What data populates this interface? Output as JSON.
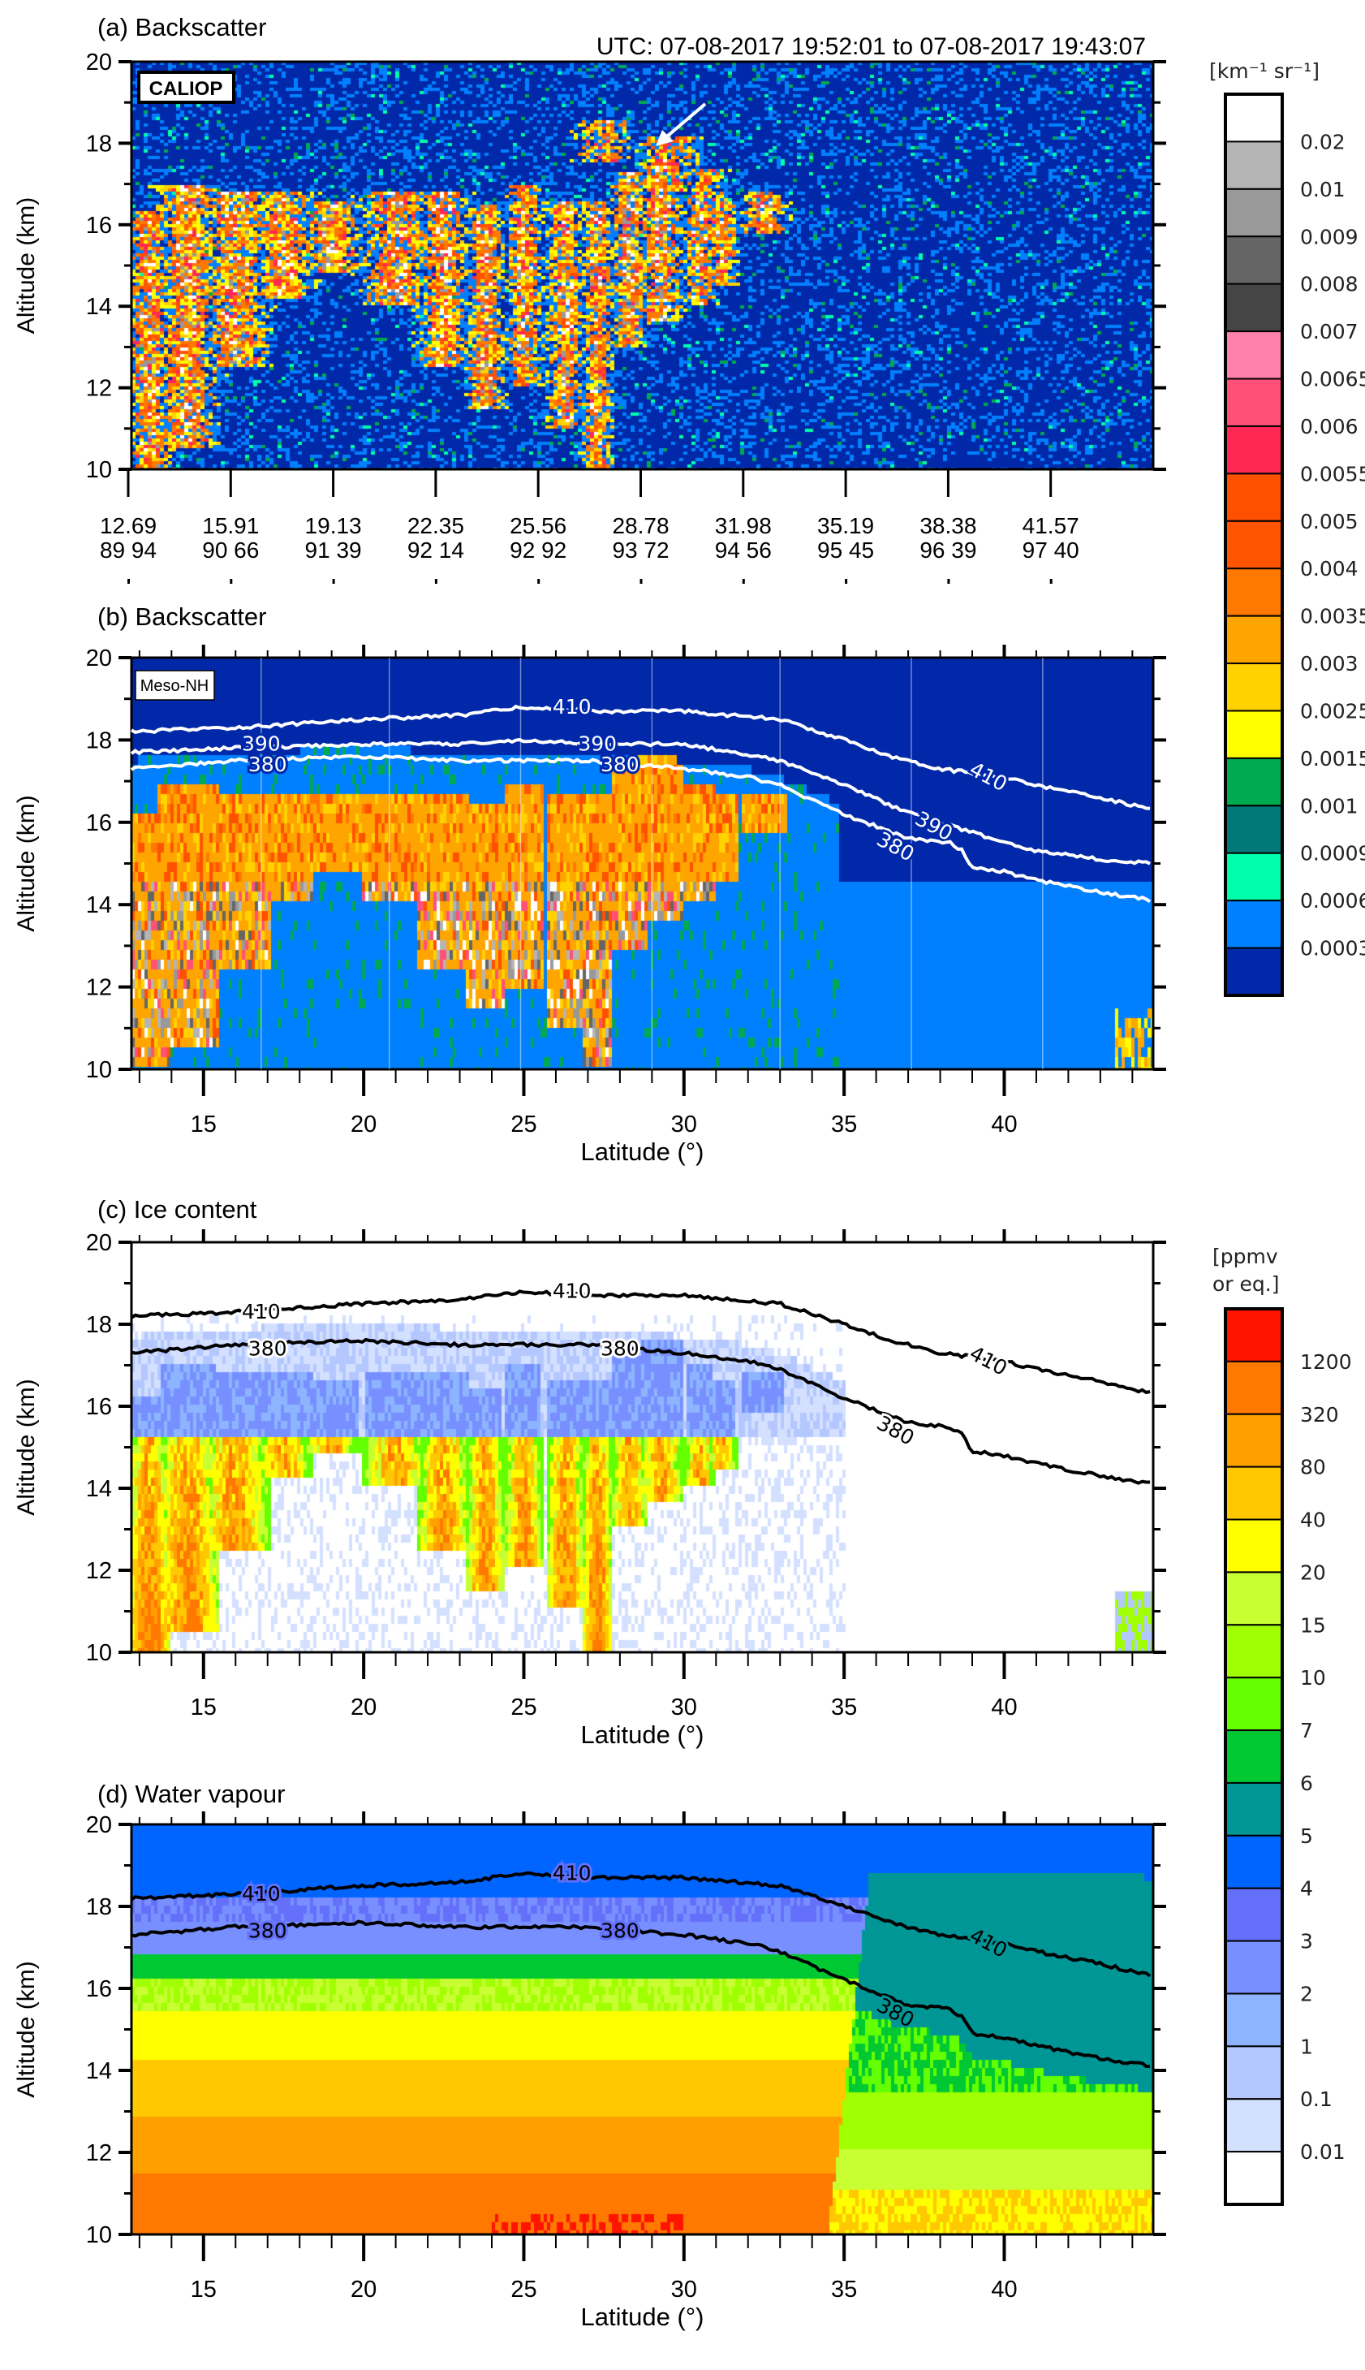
{
  "figure": {
    "utc_title": "UTC: 07-08-2017  19:52:01 to 07-08-2017 19:43:07",
    "altitude_label": "Altitude (km)",
    "latitude_label": "Latitude (°)"
  },
  "chart_data": [
    {
      "type": "heatmap",
      "panel": "a",
      "title": "(a) Backscatter",
      "inset_label": "CALIOP",
      "ylabel": "Altitude (km)",
      "ylim": [
        10,
        20
      ],
      "yticks": [
        10,
        12,
        14,
        16,
        18,
        20
      ],
      "xtick_rows": [
        [
          "12.69",
          "15.91",
          "19.13",
          "22.35",
          "25.56",
          "28.78",
          "31.98",
          "35.19",
          "38.38",
          "41.57"
        ],
        [
          "89 94",
          "90 66",
          "91 39",
          "92 14",
          "92 92",
          "93 72",
          "94 56",
          "95 45",
          "96 39",
          "97 40"
        ]
      ],
      "annotation": "arrow pointing to elevated aerosol/ice layer near 18 km",
      "colorbar": "backscatter"
    },
    {
      "type": "heatmap",
      "panel": "b",
      "title": "(b) Backscatter",
      "inset_label": "Meso-NH",
      "xlabel": "Latitude (°)",
      "ylabel": "Altitude (km)",
      "xlim": [
        12.75,
        44.65
      ],
      "ylim": [
        10,
        20
      ],
      "xticks": [
        15,
        20,
        25,
        30,
        35,
        40
      ],
      "yticks": [
        10,
        12,
        14,
        16,
        18,
        20
      ],
      "contour_color": "#ffffff",
      "contours": [
        {
          "level": "410",
          "points": [
            [
              12.75,
              18.2
            ],
            [
              16,
              18.3
            ],
            [
              20,
              18.5
            ],
            [
              23,
              18.6
            ],
            [
              25,
              18.8
            ],
            [
              27,
              18.7
            ],
            [
              30,
              18.7
            ],
            [
              33,
              18.5
            ],
            [
              35,
              18.0
            ],
            [
              36.5,
              17.6
            ],
            [
              38,
              17.3
            ],
            [
              40,
              17.1
            ],
            [
              41,
              16.9
            ],
            [
              43,
              16.6
            ],
            [
              44.65,
              16.3
            ]
          ],
          "label_at": [
            [
              26.5,
              18.8
            ],
            [
              39.5,
              17.1
            ]
          ]
        },
        {
          "level": "390",
          "points": [
            [
              12.75,
              17.7
            ],
            [
              16,
              17.8
            ],
            [
              20,
              17.9
            ],
            [
              23,
              17.9
            ],
            [
              25,
              18.0
            ],
            [
              27,
              17.9
            ],
            [
              30,
              17.9
            ],
            [
              33,
              17.5
            ],
            [
              35,
              16.9
            ],
            [
              36.5,
              16.4
            ],
            [
              38,
              16.0
            ],
            [
              40,
              15.5
            ],
            [
              41,
              15.3
            ],
            [
              43,
              15.1
            ],
            [
              44.65,
              15.0
            ]
          ],
          "label_at": [
            [
              16.8,
              17.9
            ],
            [
              27.3,
              17.9
            ],
            [
              37.8,
              15.9
            ]
          ]
        },
        {
          "level": "380",
          "points": [
            [
              12.75,
              17.3
            ],
            [
              16,
              17.5
            ],
            [
              20,
              17.6
            ],
            [
              23,
              17.5
            ],
            [
              25,
              17.5
            ],
            [
              27,
              17.5
            ],
            [
              30,
              17.3
            ],
            [
              32,
              17.1
            ],
            [
              33,
              16.9
            ],
            [
              35,
              16.2
            ],
            [
              37,
              15.6
            ],
            [
              38.3,
              15.5
            ],
            [
              38.7,
              15.3
            ],
            [
              39,
              14.9
            ],
            [
              40,
              14.8
            ],
            [
              41,
              14.6
            ],
            [
              43,
              14.3
            ],
            [
              44.65,
              14.1
            ]
          ],
          "label_at": [
            [
              17.0,
              17.4
            ],
            [
              28.0,
              17.4
            ],
            [
              36.6,
              15.4
            ]
          ]
        }
      ],
      "colorbar": "backscatter"
    },
    {
      "type": "heatmap",
      "panel": "c",
      "title": "(c) Ice content",
      "xlabel": "Latitude (°)",
      "ylabel": "Altitude (km)",
      "xlim": [
        12.75,
        44.65
      ],
      "ylim": [
        10,
        20
      ],
      "xticks": [
        15,
        20,
        25,
        30,
        35,
        40
      ],
      "yticks": [
        10,
        12,
        14,
        16,
        18,
        20
      ],
      "contour_color": "#000000",
      "contours": [
        {
          "level": "410",
          "points": [
            [
              12.75,
              18.2
            ],
            [
              16,
              18.3
            ],
            [
              20,
              18.5
            ],
            [
              23,
              18.6
            ],
            [
              25,
              18.8
            ],
            [
              27,
              18.7
            ],
            [
              30,
              18.7
            ],
            [
              33,
              18.5
            ],
            [
              35,
              18.0
            ],
            [
              36.5,
              17.6
            ],
            [
              38,
              17.3
            ],
            [
              40,
              17.1
            ],
            [
              41,
              16.9
            ],
            [
              43,
              16.6
            ],
            [
              44.65,
              16.3
            ]
          ],
          "label_at": [
            [
              16.8,
              18.3
            ],
            [
              26.5,
              18.8
            ],
            [
              39.5,
              17.1
            ]
          ]
        },
        {
          "level": "380",
          "points": [
            [
              12.75,
              17.3
            ],
            [
              16,
              17.5
            ],
            [
              20,
              17.6
            ],
            [
              23,
              17.5
            ],
            [
              25,
              17.5
            ],
            [
              27,
              17.5
            ],
            [
              30,
              17.3
            ],
            [
              32,
              17.1
            ],
            [
              33,
              16.9
            ],
            [
              35,
              16.2
            ],
            [
              37,
              15.6
            ],
            [
              38.3,
              15.5
            ],
            [
              38.7,
              15.3
            ],
            [
              39,
              14.9
            ],
            [
              40,
              14.8
            ],
            [
              41,
              14.6
            ],
            [
              43,
              14.3
            ],
            [
              44.65,
              14.1
            ]
          ],
          "label_at": [
            [
              17.0,
              17.4
            ],
            [
              28.0,
              17.4
            ],
            [
              36.6,
              15.4
            ]
          ]
        }
      ],
      "colorbar": "mixing_ratio"
    },
    {
      "type": "heatmap",
      "panel": "d",
      "title": "(d) Water vapour",
      "xlabel": "Latitude (°)",
      "ylabel": "Altitude (km)",
      "xlim": [
        12.75,
        44.65
      ],
      "ylim": [
        10,
        20
      ],
      "xticks": [
        15,
        20,
        25,
        30,
        35,
        40
      ],
      "yticks": [
        10,
        12,
        14,
        16,
        18,
        20
      ],
      "contour_color": "#000000",
      "contours": [
        {
          "level": "410",
          "points": [
            [
              12.75,
              18.2
            ],
            [
              16,
              18.3
            ],
            [
              20,
              18.5
            ],
            [
              23,
              18.6
            ],
            [
              25,
              18.8
            ],
            [
              27,
              18.7
            ],
            [
              30,
              18.7
            ],
            [
              33,
              18.5
            ],
            [
              35,
              18.0
            ],
            [
              36.5,
              17.6
            ],
            [
              38,
              17.3
            ],
            [
              40,
              17.1
            ],
            [
              41,
              16.9
            ],
            [
              43,
              16.6
            ],
            [
              44.65,
              16.3
            ]
          ],
          "label_at": [
            [
              16.8,
              18.3
            ],
            [
              26.5,
              18.8
            ],
            [
              39.5,
              17.1
            ]
          ]
        },
        {
          "level": "380",
          "points": [
            [
              12.75,
              17.3
            ],
            [
              16,
              17.5
            ],
            [
              20,
              17.6
            ],
            [
              23,
              17.5
            ],
            [
              25,
              17.5
            ],
            [
              27,
              17.5
            ],
            [
              30,
              17.3
            ],
            [
              32,
              17.1
            ],
            [
              33,
              16.9
            ],
            [
              35,
              16.2
            ],
            [
              37,
              15.6
            ],
            [
              38.3,
              15.5
            ],
            [
              38.7,
              15.3
            ],
            [
              39,
              14.9
            ],
            [
              40,
              14.8
            ],
            [
              41,
              14.6
            ],
            [
              43,
              14.3
            ],
            [
              44.65,
              14.1
            ]
          ],
          "label_at": [
            [
              17.0,
              17.4
            ],
            [
              28.0,
              17.4
            ],
            [
              36.6,
              15.4
            ]
          ]
        }
      ],
      "colorbar": "mixing_ratio"
    }
  ],
  "colorbars": {
    "backscatter": {
      "unit_label": "[km⁻¹ sr⁻¹]",
      "colors": [
        "#ffffff",
        "#b4b4b4",
        "#999999",
        "#656565",
        "#454545",
        "#ff80aa",
        "#ff5078",
        "#ff2855",
        "#ff5000",
        "#ff5500",
        "#ff7800",
        "#ffa500",
        "#ffd200",
        "#ffff00",
        "#00aa50",
        "#007878",
        "#00ffaa",
        "#0080ff",
        "#0028a8"
      ],
      "labels": [
        "0.02",
        "0.01",
        "0.009",
        "0.008",
        "0.007",
        "0.0065",
        "0.006",
        "0.0055",
        "0.005",
        "0.004",
        "0.0035",
        "0.003",
        "0.0025",
        "0.0015",
        "0.001",
        "0.0009",
        "0.0006",
        "0.0003"
      ]
    },
    "mixing_ratio": {
      "unit_label_line1": "[ppmv",
      "unit_label_line2": "or eq.]",
      "colors": [
        "#ff1400",
        "#ff7800",
        "#ffa000",
        "#ffc800",
        "#ffff00",
        "#c8ff32",
        "#a0ff00",
        "#64ff00",
        "#00c832",
        "#009696",
        "#0064ff",
        "#6470fa",
        "#7890ff",
        "#8cb4ff",
        "#b4c8ff",
        "#d4e0ff",
        "#ffffff"
      ],
      "labels": [
        "1200",
        "320",
        "80",
        "40",
        "20",
        "15",
        "10",
        "7",
        "6",
        "5",
        "4",
        "3",
        "2",
        "1",
        "0.1",
        "0.01"
      ]
    }
  }
}
